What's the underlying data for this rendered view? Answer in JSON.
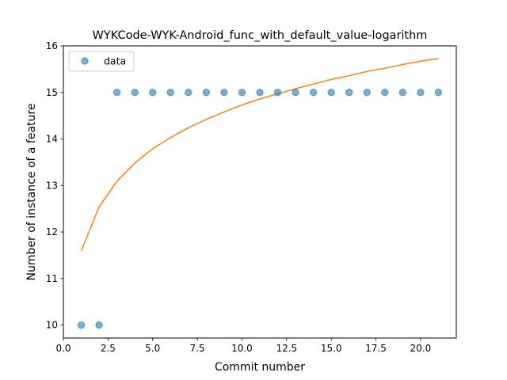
{
  "chart_data": {
    "type": "scatter",
    "title": "WYKCode-WYK-Android_func_with_default_value-logarithm",
    "xlabel": "Commit number",
    "ylabel": "Number of instance of a feature",
    "xlim": [
      0.0,
      22.0
    ],
    "ylim": [
      9.72,
      16.0
    ],
    "xticks": [
      0.0,
      2.5,
      5.0,
      7.5,
      10.0,
      12.5,
      15.0,
      17.5,
      20.0
    ],
    "xtick_labels": [
      "0.0",
      "2.5",
      "5.0",
      "7.5",
      "10.0",
      "12.5",
      "15.0",
      "17.5",
      "20.0"
    ],
    "yticks": [
      10,
      11,
      12,
      13,
      14,
      15,
      16
    ],
    "ytick_labels": [
      "10",
      "11",
      "12",
      "13",
      "14",
      "15",
      "16"
    ],
    "grid": false,
    "legend": {
      "placement": "top-left",
      "entries": [
        "data"
      ]
    },
    "series": [
      {
        "name": "data",
        "kind": "scatter",
        "color": "#1f77b4",
        "x": [
          1,
          2,
          3,
          4,
          5,
          6,
          7,
          8,
          9,
          10,
          11,
          12,
          13,
          14,
          15,
          16,
          17,
          18,
          19,
          20,
          21
        ],
        "y": [
          10,
          10,
          15,
          15,
          15,
          15,
          15,
          15,
          15,
          15,
          15,
          15,
          15,
          15,
          15,
          15,
          15,
          15,
          15,
          15,
          15
        ]
      },
      {
        "kind": "line",
        "color": "#ff7f0e",
        "x": [
          1,
          2,
          3,
          4,
          5,
          6,
          7,
          8,
          9,
          10,
          11,
          12,
          13,
          14,
          15,
          16,
          17,
          18,
          19,
          20,
          21
        ],
        "y": [
          11.59,
          12.54,
          13.09,
          13.48,
          13.79,
          14.03,
          14.24,
          14.42,
          14.58,
          14.73,
          14.86,
          14.97,
          15.08,
          15.18,
          15.28,
          15.36,
          15.45,
          15.52,
          15.6,
          15.67,
          15.73
        ]
      }
    ]
  }
}
